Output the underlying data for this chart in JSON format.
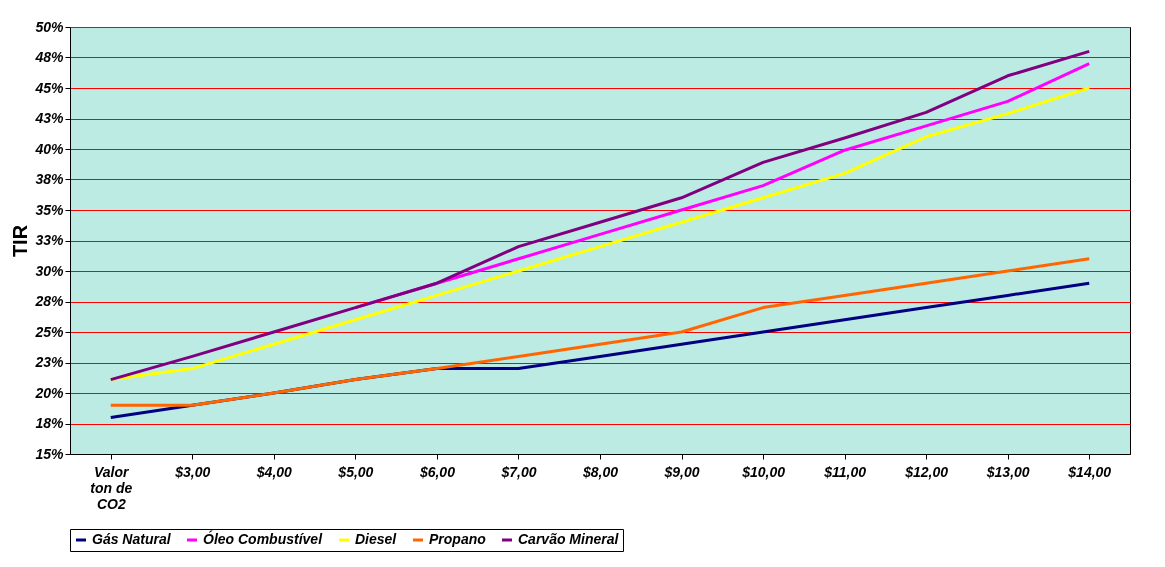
{
  "chart_data": {
    "type": "line",
    "ylabel": "TIR",
    "categories": [
      "Valor\nton de\nCO2",
      "$3,00",
      "$4,00",
      "$5,00",
      "$6,00",
      "$7,00",
      "$8,00",
      "$9,00",
      "$10,00",
      "$11,00",
      "$12,00",
      "$13,00",
      "$14,00"
    ],
    "series": [
      {
        "name": "Gás Natural",
        "color": "#000080",
        "values": [
          18.0,
          19.0,
          20.0,
          21.1,
          22.0,
          22.0,
          23.0,
          24.0,
          25.0,
          26.0,
          27.0,
          28.0,
          29.0
        ]
      },
      {
        "name": "Óleo Combustível",
        "color": "#ff00ff",
        "values": [
          null,
          null,
          null,
          27.0,
          29.0,
          31.0,
          33.0,
          35.0,
          37.0,
          39.9,
          41.9,
          43.9,
          47.0
        ]
      },
      {
        "name": "Diesel",
        "color": "#ffff00",
        "values": [
          21.1,
          22.0,
          24.0,
          26.0,
          28.0,
          30.0,
          32.0,
          34.0,
          36.0,
          38.0,
          41.0,
          42.9,
          45.0
        ]
      },
      {
        "name": "Propano",
        "color": "#ff6600",
        "values": [
          19.0,
          19.0,
          20.0,
          21.1,
          22.0,
          23.0,
          24.0,
          25.0,
          27.0,
          28.0,
          29.0,
          30.0,
          31.0
        ]
      },
      {
        "name": "Carvão Mineral",
        "color": "#800080",
        "values": [
          21.1,
          23.0,
          25.0,
          27.0,
          29.0,
          32.0,
          34.0,
          36.0,
          38.9,
          40.9,
          43.0,
          46.0,
          48.0
        ]
      }
    ],
    "ylim": [
      15,
      50
    ],
    "yticks": [
      {
        "value": 15,
        "label": "15%"
      },
      {
        "value": 17.5,
        "label": "18%"
      },
      {
        "value": 20,
        "label": "20%"
      },
      {
        "value": 22.5,
        "label": "23%"
      },
      {
        "value": 25,
        "label": "25%"
      },
      {
        "value": 27.5,
        "label": "28%"
      },
      {
        "value": 30,
        "label": "30%"
      },
      {
        "value": 32.5,
        "label": "33%"
      },
      {
        "value": 35,
        "label": "35%"
      },
      {
        "value": 37.5,
        "label": "38%"
      },
      {
        "value": 40,
        "label": "40%"
      },
      {
        "value": 42.5,
        "label": "43%"
      },
      {
        "value": 45,
        "label": "45%"
      },
      {
        "value": 47.5,
        "label": "48%"
      },
      {
        "value": 50,
        "label": "50%"
      }
    ],
    "grid": "y",
    "legend": "bottom",
    "marker": "none",
    "line_style": "solid"
  }
}
